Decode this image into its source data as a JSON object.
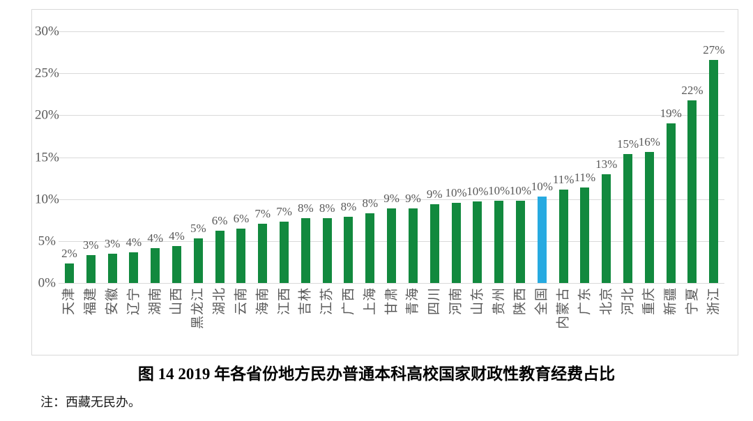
{
  "title": "图 14 2019 年各省份地方民办普通本科高校国家财政性教育经费占比",
  "note": "注：西藏无民办。",
  "chart_data": {
    "type": "bar",
    "title": "图 14 2019 年各省份地方民办普通本科高校国家财政性教育经费占比",
    "note": "注：西藏无民办。",
    "categories": [
      "天津",
      "福建",
      "安徽",
      "辽宁",
      "湖南",
      "山西",
      "黑龙江",
      "湖北",
      "云南",
      "海南",
      "江西",
      "吉林",
      "江苏",
      "广西",
      "上海",
      "甘肃",
      "青海",
      "四川",
      "河南",
      "山东",
      "贵州",
      "陕西",
      "全国",
      "内蒙古",
      "广东",
      "北京",
      "河北",
      "重庆",
      "新疆",
      "宁夏",
      "浙江"
    ],
    "values": [
      2.3,
      3.3,
      3.5,
      3.7,
      4.2,
      4.4,
      5.3,
      6.2,
      6.5,
      7.1,
      7.3,
      7.7,
      7.7,
      7.9,
      8.3,
      8.9,
      8.9,
      9.4,
      9.6,
      9.7,
      9.8,
      9.8,
      10.3,
      11.1,
      11.4,
      13.0,
      15.4,
      15.6,
      19.0,
      21.8,
      26.6
    ],
    "bar_labels": [
      "2%",
      "3%",
      "3%",
      "4%",
      "4%",
      "4%",
      "5%",
      "6%",
      "6%",
      "7%",
      "7%",
      "8%",
      "8%",
      "8%",
      "8%",
      "9%",
      "9%",
      "9%",
      "10%",
      "10%",
      "10%",
      "10%",
      "10%",
      "11%",
      "11%",
      "13%",
      "15%",
      "16%",
      "19%",
      "22%",
      "27%"
    ],
    "highlight_category": "全国",
    "highlight_index": 22,
    "bar_color": "#12893E",
    "highlight_color": "#27AAE1",
    "xlabel": "",
    "ylabel": "",
    "ylim": [
      0,
      30
    ],
    "yticks": [
      "30%",
      "25%",
      "20%",
      "15%",
      "10%",
      "5%",
      "0%"
    ],
    "grid": true,
    "legend": "none"
  }
}
